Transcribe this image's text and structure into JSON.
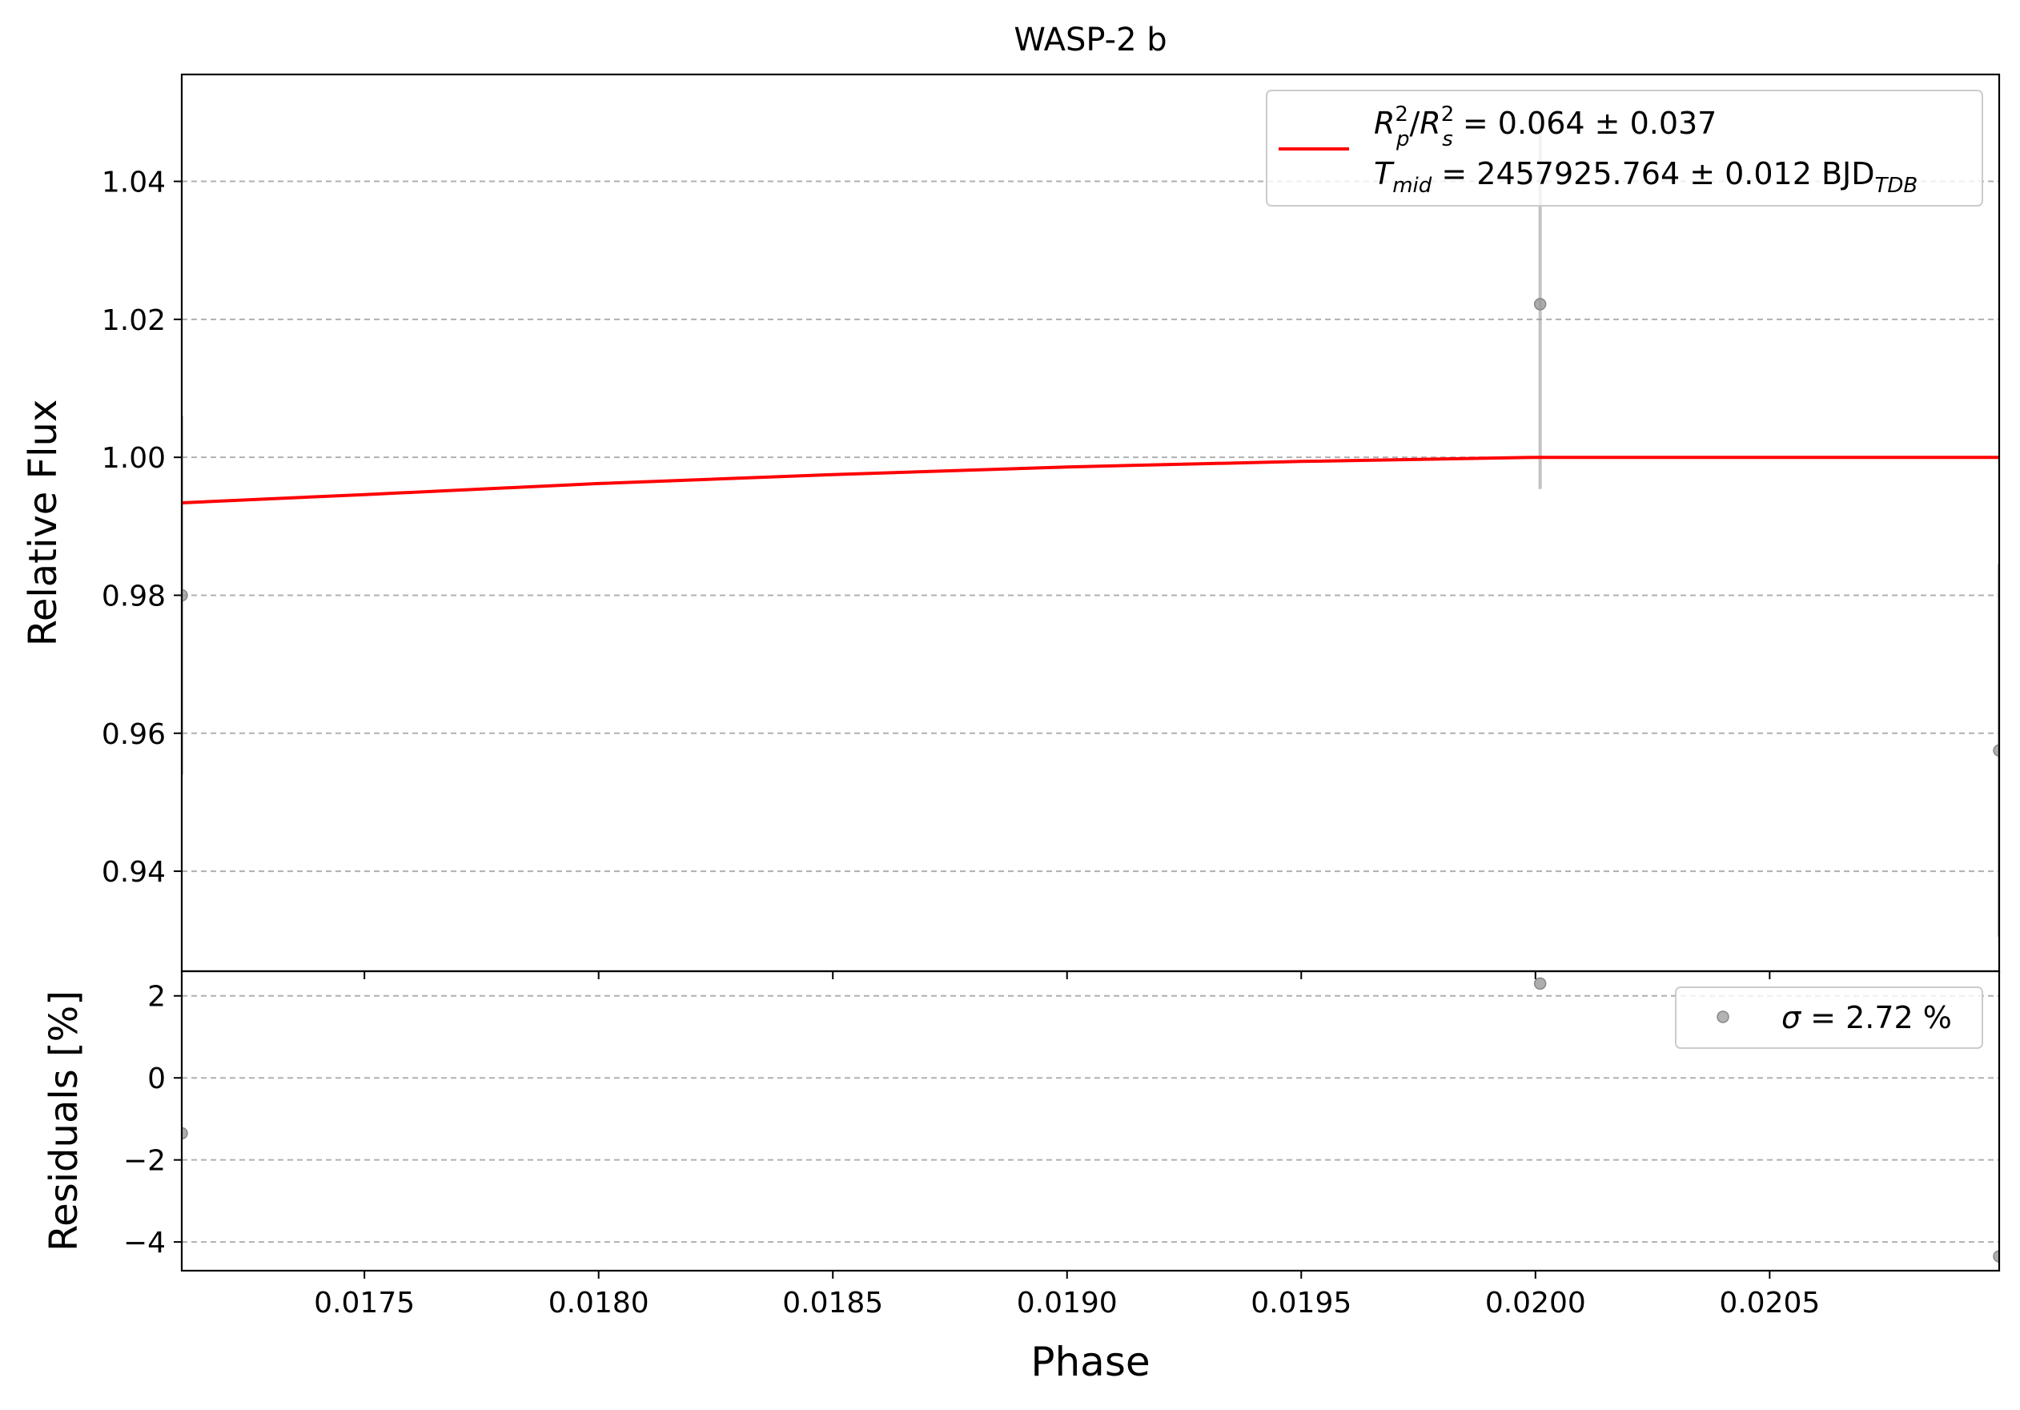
{
  "chart_data": [
    {
      "type": "scatter",
      "title": "WASP-2 b",
      "xlabel": "",
      "ylabel": "Relative Flux",
      "xlim": [
        0.01711,
        0.02099
      ],
      "ylim": [
        0.9255,
        1.0555
      ],
      "xticks": [
        0.0175,
        0.018,
        0.0185,
        0.019,
        0.0195,
        0.02,
        0.0205
      ],
      "yticks": [
        0.94,
        0.96,
        0.98,
        1.0,
        1.02,
        1.04
      ],
      "ytick_labels": [
        "0.94",
        "0.96",
        "0.98",
        "1.00",
        "1.02",
        "1.04"
      ],
      "grid": "horizontal-dashed",
      "legend_position": "top-right",
      "series": [
        {
          "kind": "points",
          "color": "#999999",
          "points": [
            {
              "x": 0.01711,
              "y": 0.98,
              "err": 0.026
            },
            {
              "x": 0.02001,
              "y": 1.0222,
              "err": 0.0268
            },
            {
              "x": 0.02099,
              "y": 0.9575,
              "err": 0.027
            }
          ]
        },
        {
          "kind": "model",
          "color": "#ff0000",
          "x": [
            0.01711,
            0.0175,
            0.018,
            0.0185,
            0.019,
            0.0195,
            0.02,
            0.02025,
            0.0205,
            0.02099
          ],
          "y": [
            0.9934,
            0.9946,
            0.9962,
            0.9975,
            0.9986,
            0.9994,
            1.0,
            1.0,
            1.0,
            1.0
          ]
        }
      ],
      "legend": {
        "line1": {
          "a": "R",
          "a_sup": "2",
          "a_sub": "p",
          "slash": "/",
          "b": "R",
          "b_sup": "2",
          "b_sub": "s",
          "rest": " = 0.064 ± 0.037"
        },
        "line2": {
          "a": "T",
          "a_sub": "mid",
          "rest": " = 2457925.764 ± 0.012 BJD",
          "unit_sub": "TDB"
        }
      }
    },
    {
      "type": "scatter",
      "title": "",
      "xlabel": "Phase",
      "ylabel": "Residuals [%]",
      "xlim": [
        0.01711,
        0.02099
      ],
      "ylim": [
        -4.7,
        2.6
      ],
      "xticks": [
        0.0175,
        0.018,
        0.0185,
        0.019,
        0.0195,
        0.02,
        0.0205
      ],
      "xtick_labels": [
        "0.0175",
        "0.0180",
        "0.0185",
        "0.0190",
        "0.0195",
        "0.0200",
        "0.0205"
      ],
      "yticks": [
        -4,
        -2,
        0,
        2
      ],
      "ytick_labels": [
        "−4",
        "−2",
        "0",
        "2"
      ],
      "grid": "horizontal-dashed",
      "legend_position": "top-right",
      "series": [
        {
          "kind": "points",
          "color": "#999999",
          "points": [
            {
              "x": 0.01711,
              "y": -1.35
            },
            {
              "x": 0.02001,
              "y": 2.3
            },
            {
              "x": 0.02099,
              "y": -4.35
            }
          ]
        }
      ],
      "legend": {
        "sym": "σ",
        "rest": " = 2.72 %"
      }
    }
  ]
}
